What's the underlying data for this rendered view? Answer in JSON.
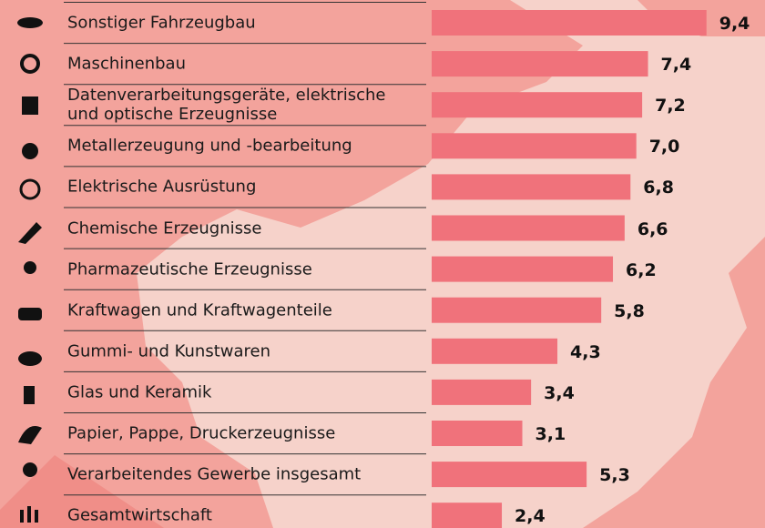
{
  "chart_data": {
    "type": "bar",
    "orientation": "horizontal",
    "categories": [
      "Sonstiger Fahrzeugbau",
      "Maschinenbau",
      "Datenverarbeitungsgeräte, elektrische\nund optische Erzeugnisse",
      "Metallerzeugung und -bearbeitung",
      "Elektrische Ausrüstung",
      "Chemische Erzeugnisse",
      "Pharmazeutische Erzeugnisse",
      "Kraftwagen und Kraftwagenteile",
      "Gummi- und Kunstwaren",
      "Glas und Keramik",
      "Papier, Pappe, Druckerzeugnisse",
      "Verarbeitendes Gewerbe insgesamt",
      "Gesamtwirtschaft"
    ],
    "values": [
      9.4,
      7.4,
      7.2,
      7.0,
      6.8,
      6.6,
      6.2,
      5.8,
      4.3,
      3.4,
      3.1,
      5.3,
      2.4
    ],
    "value_labels": [
      "9,4",
      "7,4",
      "7,2",
      "7,0",
      "6,8",
      "6,6",
      "6,2",
      "5,8",
      "4,3",
      "3,4",
      "3,1",
      "5,3",
      "2,4"
    ],
    "color": "#f0727b"
  }
}
